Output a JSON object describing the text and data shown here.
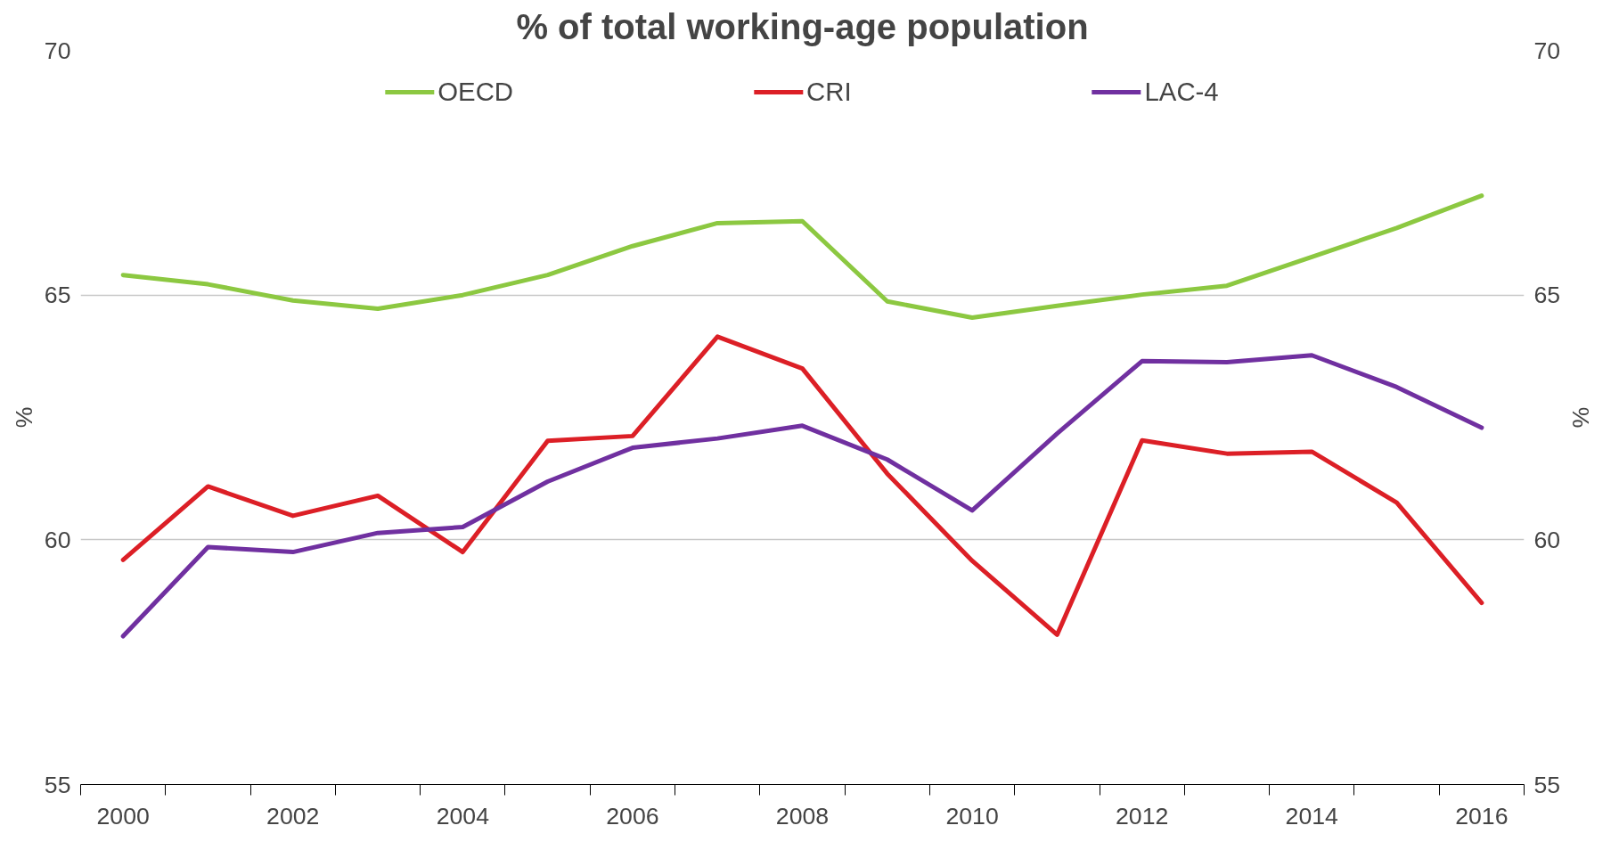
{
  "chart_data": {
    "type": "line",
    "title": "% of total working-age population",
    "ylabel": "%",
    "y2label": "%",
    "x": [
      2000,
      2001,
      2002,
      2003,
      2004,
      2005,
      2006,
      2007,
      2008,
      2009,
      2010,
      2011,
      2012,
      2013,
      2014,
      2015,
      2016
    ],
    "xlim": [
      1999.5,
      2016.5
    ],
    "xticks": [
      {
        "value": 1999.5,
        "label": null
      },
      {
        "value": 2000,
        "label": "2000"
      },
      {
        "value": 2000.5,
        "label": null
      },
      {
        "value": 2001.5,
        "label": null
      },
      {
        "value": 2002,
        "label": "2002"
      },
      {
        "value": 2002.5,
        "label": null
      },
      {
        "value": 2003.5,
        "label": null
      },
      {
        "value": 2004,
        "label": "2004"
      },
      {
        "value": 2004.5,
        "label": null
      },
      {
        "value": 2005.5,
        "label": null
      },
      {
        "value": 2006,
        "label": "2006"
      },
      {
        "value": 2006.5,
        "label": null
      },
      {
        "value": 2007.5,
        "label": null
      },
      {
        "value": 2008,
        "label": "2008"
      },
      {
        "value": 2008.5,
        "label": null
      },
      {
        "value": 2009.5,
        "label": null
      },
      {
        "value": 2010,
        "label": "2010"
      },
      {
        "value": 2010.5,
        "label": null
      },
      {
        "value": 2011.5,
        "label": null
      },
      {
        "value": 2012,
        "label": "2012"
      },
      {
        "value": 2012.5,
        "label": null
      },
      {
        "value": 2013.5,
        "label": null
      },
      {
        "value": 2014,
        "label": "2014"
      },
      {
        "value": 2014.5,
        "label": null
      },
      {
        "value": 2015.5,
        "label": null
      },
      {
        "value": 2016,
        "label": "2016"
      },
      {
        "value": 2016.5,
        "label": null
      }
    ],
    "ylim": [
      55,
      70
    ],
    "yticks": [
      55,
      60,
      65,
      70
    ],
    "y2lim": [
      55,
      70
    ],
    "y2ticks": [
      55,
      60,
      65,
      70
    ],
    "grid": "y",
    "legend": "top",
    "line_style": "solid",
    "marker": "none",
    "series": [
      {
        "name": "OECD",
        "color": "#8cc841",
        "values": [
          65.41,
          65.22,
          64.89,
          64.72,
          65.0,
          65.41,
          66.0,
          66.47,
          66.51,
          64.87,
          64.54,
          64.78,
          65.01,
          65.19,
          65.78,
          66.37,
          67.03
        ]
      },
      {
        "name": "CRI",
        "color": "#dc1f26",
        "values": [
          59.59,
          61.09,
          60.49,
          60.9,
          59.75,
          62.02,
          62.12,
          64.15,
          63.5,
          61.35,
          59.57,
          58.06,
          62.03,
          61.76,
          61.8,
          60.76,
          58.71
        ]
      },
      {
        "name": "LAC-4",
        "color": "#7030a0",
        "values": [
          58.03,
          59.85,
          59.75,
          60.14,
          60.26,
          61.19,
          61.88,
          62.07,
          62.33,
          61.64,
          60.6,
          62.17,
          63.65,
          63.63,
          63.77,
          63.12,
          62.29
        ]
      }
    ]
  }
}
